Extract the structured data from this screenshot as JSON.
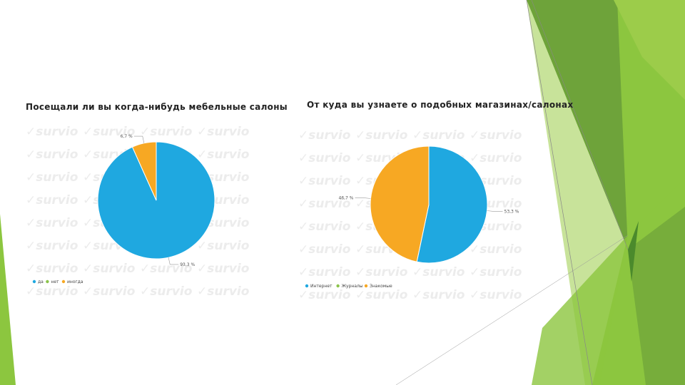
{
  "slide": {
    "decor_colors": [
      "#8cc63f",
      "#6ea33a",
      "#4b8a2c",
      "#c8e39a"
    ]
  },
  "watermark": {
    "text": "✓survio"
  },
  "chart_data": [
    {
      "type": "pie",
      "title": "Посещали ли вы когда-нибудь мебельные салоны",
      "slices": [
        {
          "label": "да",
          "value": 93.3,
          "value_label": "93,3 %",
          "color": "#1fa8e0"
        },
        {
          "label": "нет",
          "value": 0,
          "value_label": "",
          "color": "#8bc34a"
        },
        {
          "label": "иногда",
          "value": 6.7,
          "value_label": "6,7 %",
          "color": "#f7a823"
        }
      ],
      "legend_position": "bottom-left"
    },
    {
      "type": "pie",
      "title": "От куда вы узнаете о подобных магазинах/салонах",
      "slices": [
        {
          "label": "Интернет",
          "value": 53.3,
          "value_label": "53,3 %",
          "color": "#1fa8e0"
        },
        {
          "label": "Журналы",
          "value": 0,
          "value_label": "",
          "color": "#8bc34a"
        },
        {
          "label": "Знакомые",
          "value": 46.7,
          "value_label": "46,7 %",
          "color": "#f7a823"
        }
      ],
      "legend_position": "bottom-left"
    }
  ]
}
